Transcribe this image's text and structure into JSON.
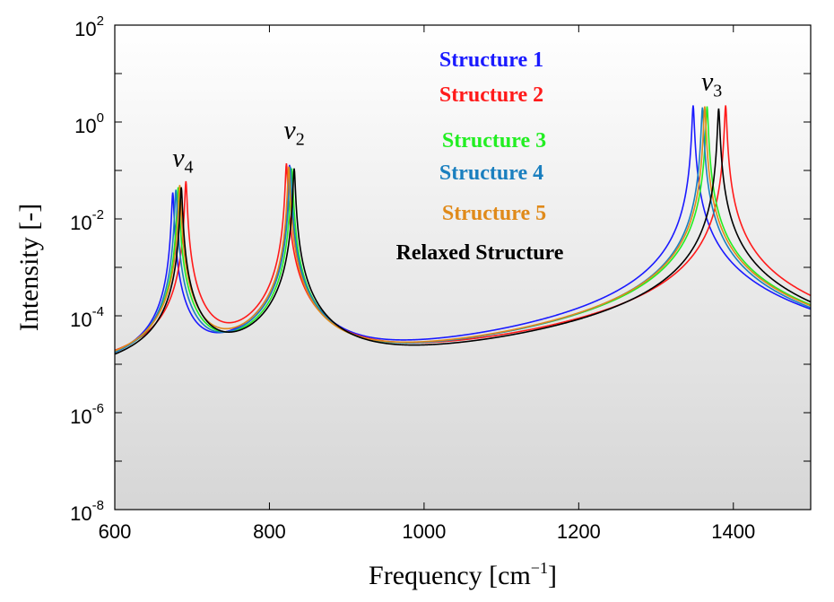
{
  "chart_data": {
    "type": "line",
    "xlabel": "Frequency [cm",
    "xlabel_sup": "−1",
    "xlabel_close": "]",
    "ylabel": "Intensity [-]",
    "xlim": [
      600,
      1500
    ],
    "ylim": [
      1e-08,
      100
    ],
    "yscale": "log",
    "x_ticks": [
      600,
      800,
      1000,
      1200,
      1400
    ],
    "y_ticks": [
      {
        "base": "10",
        "exp": "2",
        "value": 100
      },
      {
        "base": "10",
        "exp": "0",
        "value": 1
      },
      {
        "base": "10",
        "exp": "-2",
        "value": 0.01
      },
      {
        "base": "10",
        "exp": "-4",
        "value": 0.0001
      },
      {
        "base": "10",
        "exp": "-6",
        "value": 1e-06
      },
      {
        "base": "10",
        "exp": "-8",
        "value": 1e-08
      }
    ],
    "grid": false,
    "legend_position": "top-center",
    "peak_annotations": [
      {
        "symbol": "ν",
        "sub": "4",
        "x": 688,
        "y": 0.12
      },
      {
        "symbol": "ν",
        "sub": "2",
        "x": 832,
        "y": 0.45
      },
      {
        "symbol": "ν",
        "sub": "3",
        "x": 1372,
        "y": 4.5
      }
    ],
    "series": [
      {
        "name": "Structure 1",
        "color": "#1a1aff",
        "peaks": [
          {
            "center": 675,
            "height": 0.035,
            "width": 1.2
          },
          {
            "center": 826,
            "height": 0.13,
            "width": 1.2
          },
          {
            "center": 1348,
            "height": 2.2,
            "width": 1.2
          }
        ]
      },
      {
        "name": "Structure 2",
        "color": "#ff1a1a",
        "peaks": [
          {
            "center": 692,
            "height": 0.06,
            "width": 1.2
          },
          {
            "center": 822,
            "height": 0.14,
            "width": 1.2
          },
          {
            "center": 1390,
            "height": 2.2,
            "width": 1.2
          }
        ]
      },
      {
        "name": "Structure 3",
        "color": "#22ee22",
        "peaks": [
          {
            "center": 682,
            "height": 0.045,
            "width": 1.2
          },
          {
            "center": 829,
            "height": 0.11,
            "width": 1.2
          },
          {
            "center": 1366,
            "height": 2.1,
            "width": 1.2
          }
        ]
      },
      {
        "name": "Structure 4",
        "color": "#1a7fbf",
        "peaks": [
          {
            "center": 679,
            "height": 0.04,
            "width": 1.2
          },
          {
            "center": 827,
            "height": 0.12,
            "width": 1.2
          },
          {
            "center": 1360,
            "height": 2.0,
            "width": 1.2
          }
        ]
      },
      {
        "name": "Structure 5",
        "color": "#e08a1a",
        "peaks": [
          {
            "center": 684,
            "height": 0.05,
            "width": 1.2
          },
          {
            "center": 825,
            "height": 0.12,
            "width": 1.2
          },
          {
            "center": 1363,
            "height": 2.1,
            "width": 1.2
          }
        ]
      },
      {
        "name": "Relaxed Structure",
        "color": "#000000",
        "peaks": [
          {
            "center": 686,
            "height": 0.045,
            "width": 1.2
          },
          {
            "center": 832,
            "height": 0.11,
            "width": 1.2
          },
          {
            "center": 1381,
            "height": 1.9,
            "width": 1.2
          }
        ]
      }
    ]
  }
}
